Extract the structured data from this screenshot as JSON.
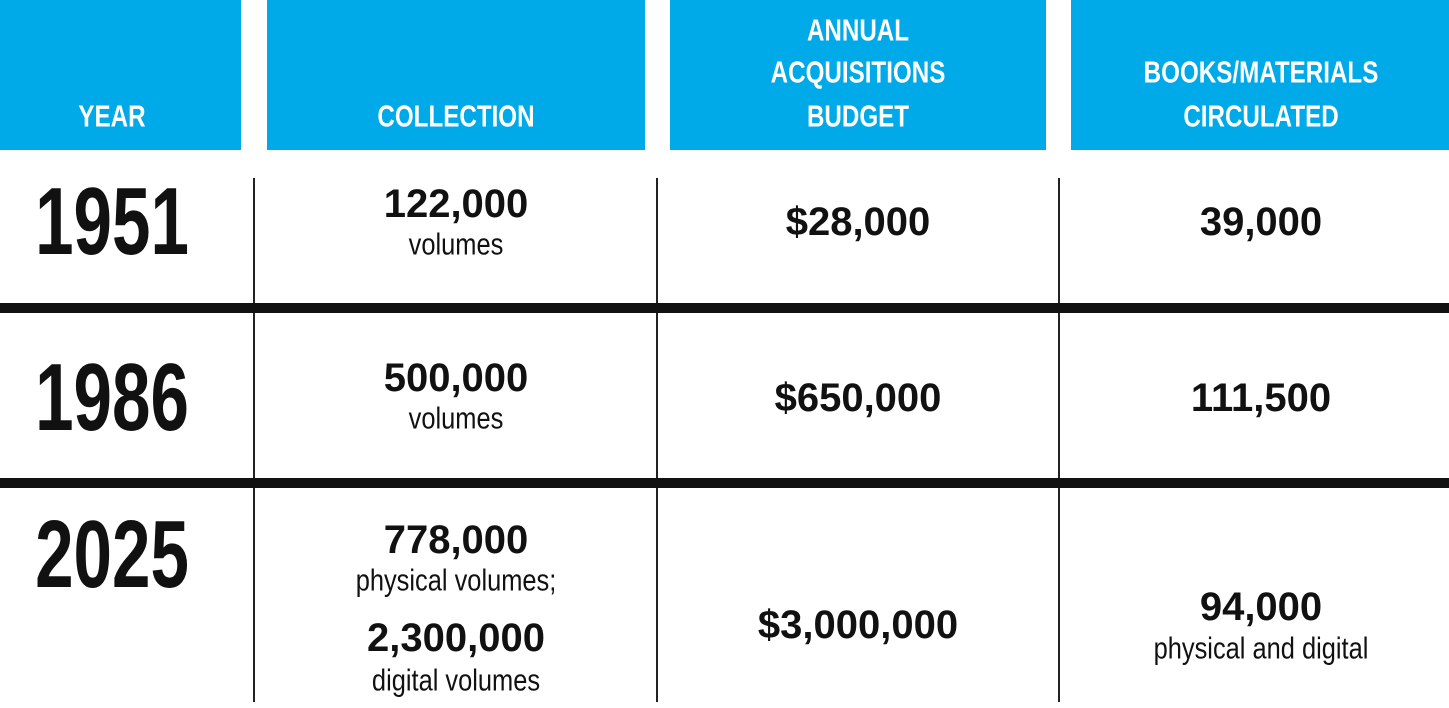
{
  "table": {
    "headers": [
      [
        "YEAR"
      ],
      [
        "COLLECTION"
      ],
      [
        "ANNUAL",
        "ACQUISITIONS",
        "BUDGET"
      ],
      [
        "BOOKS/MATERIALS",
        "CIRCULATED"
      ]
    ],
    "rows": [
      {
        "year": "1951",
        "collection": [
          {
            "number": "122,000",
            "unit": "volumes"
          }
        ],
        "budget": "$28,000",
        "circulated": {
          "number": "39,000"
        }
      },
      {
        "year": "1986",
        "collection": [
          {
            "number": "500,000",
            "unit": "volumes"
          }
        ],
        "budget": "$650,000",
        "circulated": {
          "number": "111,500"
        }
      },
      {
        "year": "2025",
        "collection": [
          {
            "number": "778,000",
            "unit": "physical volumes;"
          },
          {
            "number": "2,300,000",
            "unit": "digital volumes"
          }
        ],
        "budget": "$3,000,000",
        "circulated": {
          "number": "94,000",
          "unit": "physical and digital"
        }
      }
    ]
  }
}
